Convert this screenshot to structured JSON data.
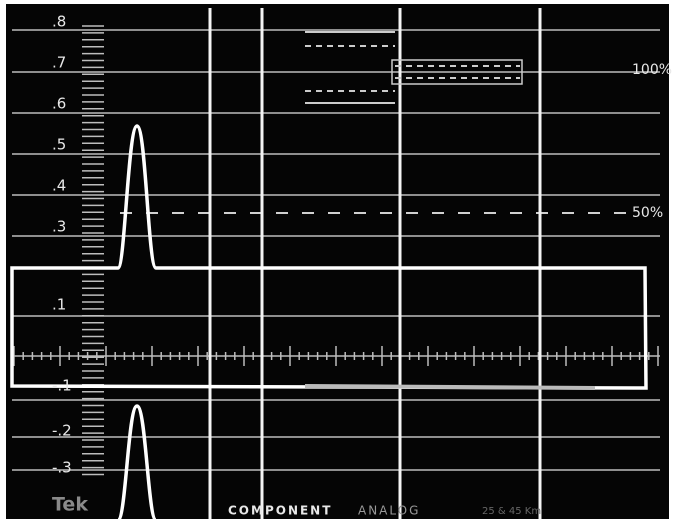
{
  "scale_labels": [
    ".8",
    ".7",
    ".6",
    ".5",
    ".4",
    ".3",
    ".1",
    "-.1",
    "-.2",
    "-.3"
  ],
  "percent_labels": [
    "100%",
    "50%"
  ],
  "footer": {
    "brand": "Tek",
    "mode": "COMPONENT",
    "signal": "ANALOG",
    "format": "25 & 45 Km"
  }
}
